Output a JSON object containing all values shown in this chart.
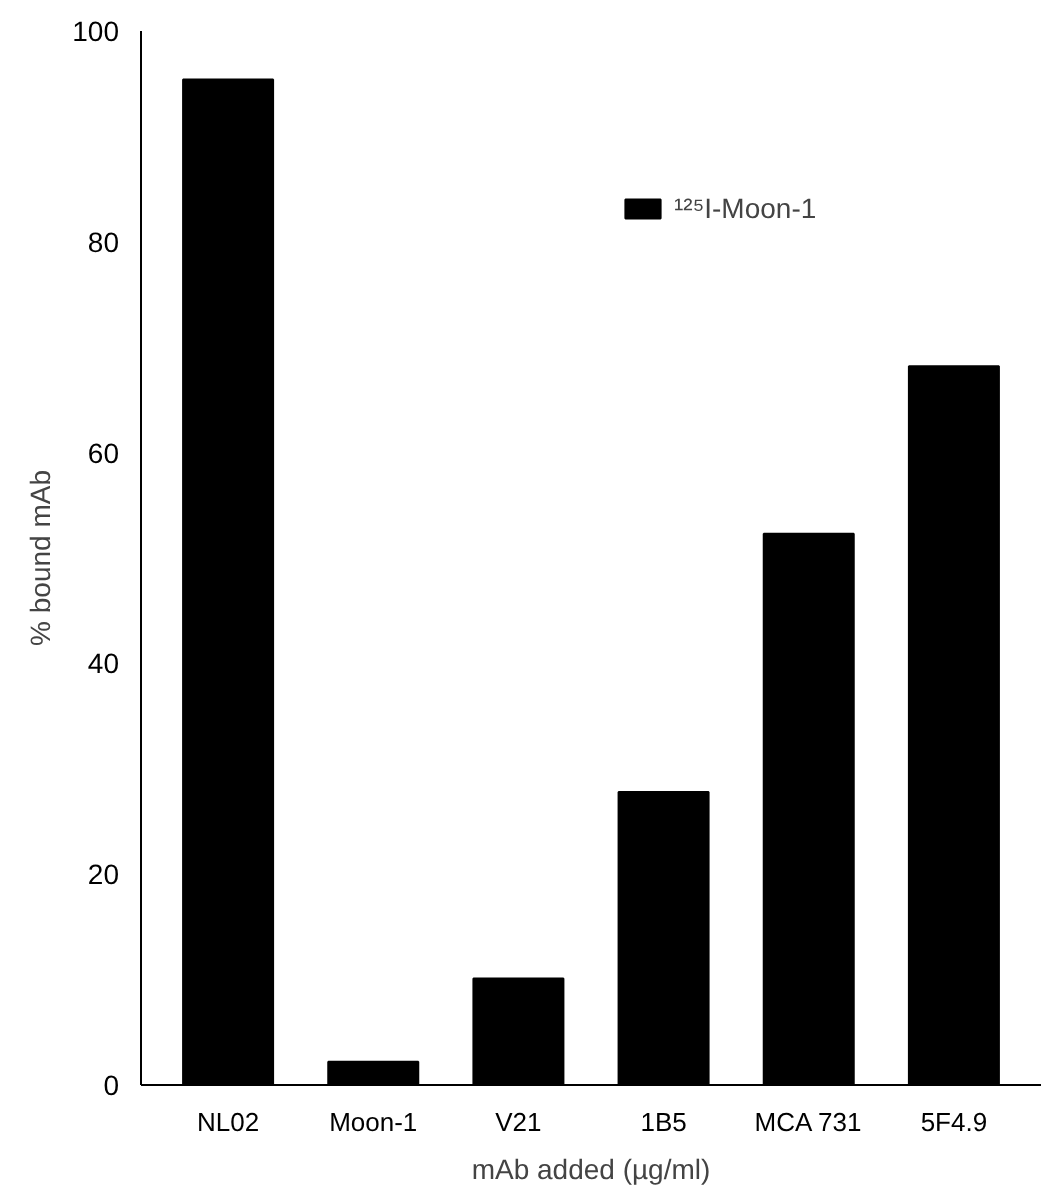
{
  "chart_data": {
    "type": "bar",
    "xlabel": "mAb added (µg/ml)",
    "ylabel": "% bound mAb",
    "categories": [
      "NL02",
      "Moon-1",
      "V21",
      "1B5",
      "MCA 731",
      "5F4.9"
    ],
    "series": [
      {
        "name": "¹²⁵I-Moon-1",
        "color": "#000000",
        "values": [
          95.4,
          2.2,
          10.1,
          27.8,
          52.3,
          68.2
        ]
      }
    ],
    "ylim": [
      0,
      100
    ],
    "yticks": [
      0,
      20,
      40,
      60,
      80,
      100
    ],
    "grid": false,
    "legend": "top right"
  }
}
